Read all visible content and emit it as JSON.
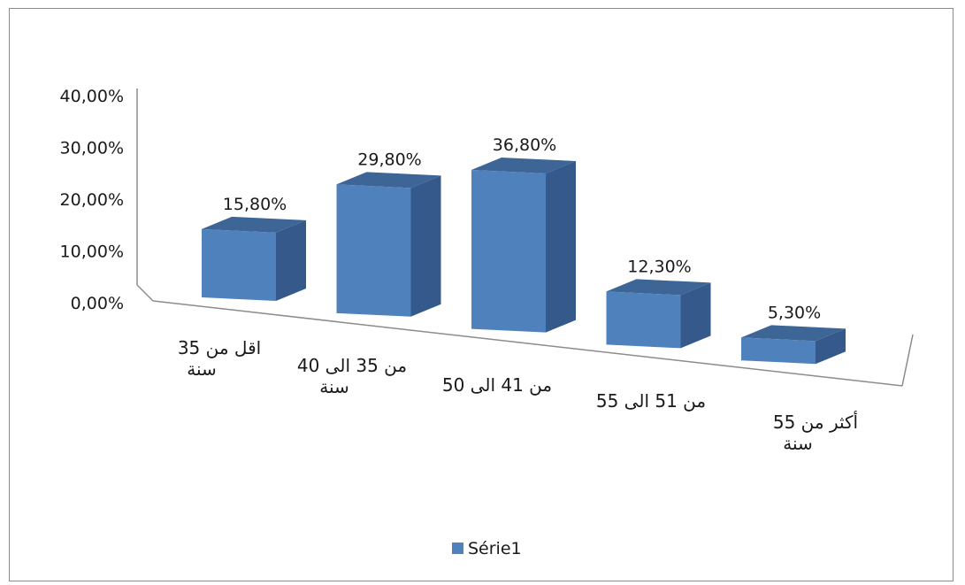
{
  "chart_data": {
    "type": "bar",
    "style": "3d-perspective",
    "categories": [
      [
        "اقل من 35",
        "سنة"
      ],
      [
        "من 35  الى 40",
        "سنة"
      ],
      [
        "من 41  الى 50"
      ],
      [
        "من 51  الى 55"
      ],
      [
        "أكثر من 55",
        "سنة"
      ]
    ],
    "series": [
      {
        "name": "Série1",
        "values": [
          15.8,
          29.8,
          36.8,
          12.3,
          5.3
        ],
        "labels": [
          "15,80%",
          "29,80%",
          "36,80%",
          "12,30%",
          "5,30%"
        ],
        "color": "#4f81bd"
      }
    ],
    "y_ticks": [
      "0,00%",
      "10,00%",
      "20,00%",
      "30,00%",
      "40,00%"
    ],
    "ylim": [
      0,
      40
    ],
    "grid": false,
    "legend": "bottom",
    "title": "",
    "xlabel": "",
    "ylabel": ""
  }
}
